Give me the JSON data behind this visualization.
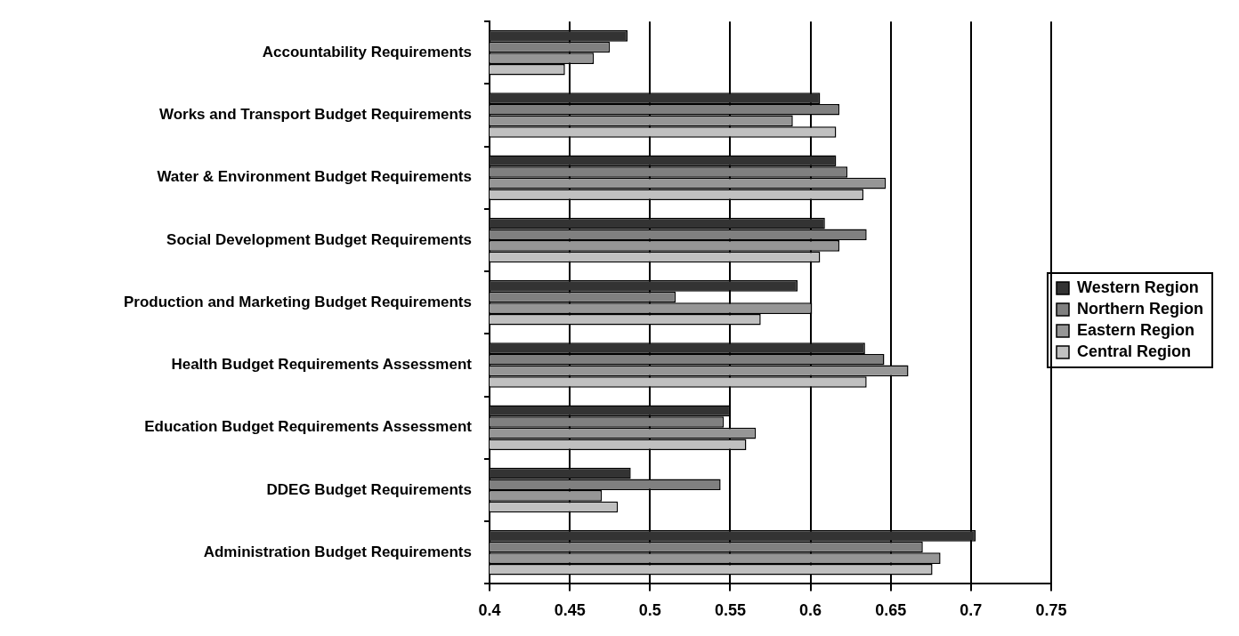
{
  "chart_data": {
    "type": "bar",
    "orientation": "horizontal",
    "categories": [
      "Accountability Requirements",
      "Works and Transport Budget Requirements",
      "Water & Environment Budget Requirements",
      "Social Development Budget Requirements",
      "Production and Marketing Budget Requirements",
      "Health Budget Requirements Assessment",
      "Education Budget Requirements Assessment",
      "DDEG Budget Requirements",
      "Administration Budget Requirements"
    ],
    "series": [
      {
        "name": "Western Region",
        "color": "#333333",
        "values": [
          0.486,
          0.606,
          0.616,
          0.609,
          0.592,
          0.634,
          0.55,
          0.488,
          0.703
        ]
      },
      {
        "name": "Northern Region",
        "color": "#808080",
        "values": [
          0.475,
          0.618,
          0.623,
          0.635,
          0.516,
          0.646,
          0.546,
          0.544,
          0.67
        ]
      },
      {
        "name": "Eastern Region",
        "color": "#969696",
        "values": [
          0.465,
          0.589,
          0.647,
          0.618,
          0.601,
          0.661,
          0.566,
          0.47,
          0.681
        ]
      },
      {
        "name": "Central Region",
        "color": "#c0c0c0",
        "values": [
          0.447,
          0.616,
          0.633,
          0.606,
          0.569,
          0.635,
          0.56,
          0.48,
          0.676
        ]
      }
    ],
    "xlim": [
      0.4,
      0.75
    ],
    "xticks": [
      0.4,
      0.45,
      0.5,
      0.55,
      0.6,
      0.65,
      0.7,
      0.75
    ],
    "grid": "x",
    "legend": "right"
  }
}
